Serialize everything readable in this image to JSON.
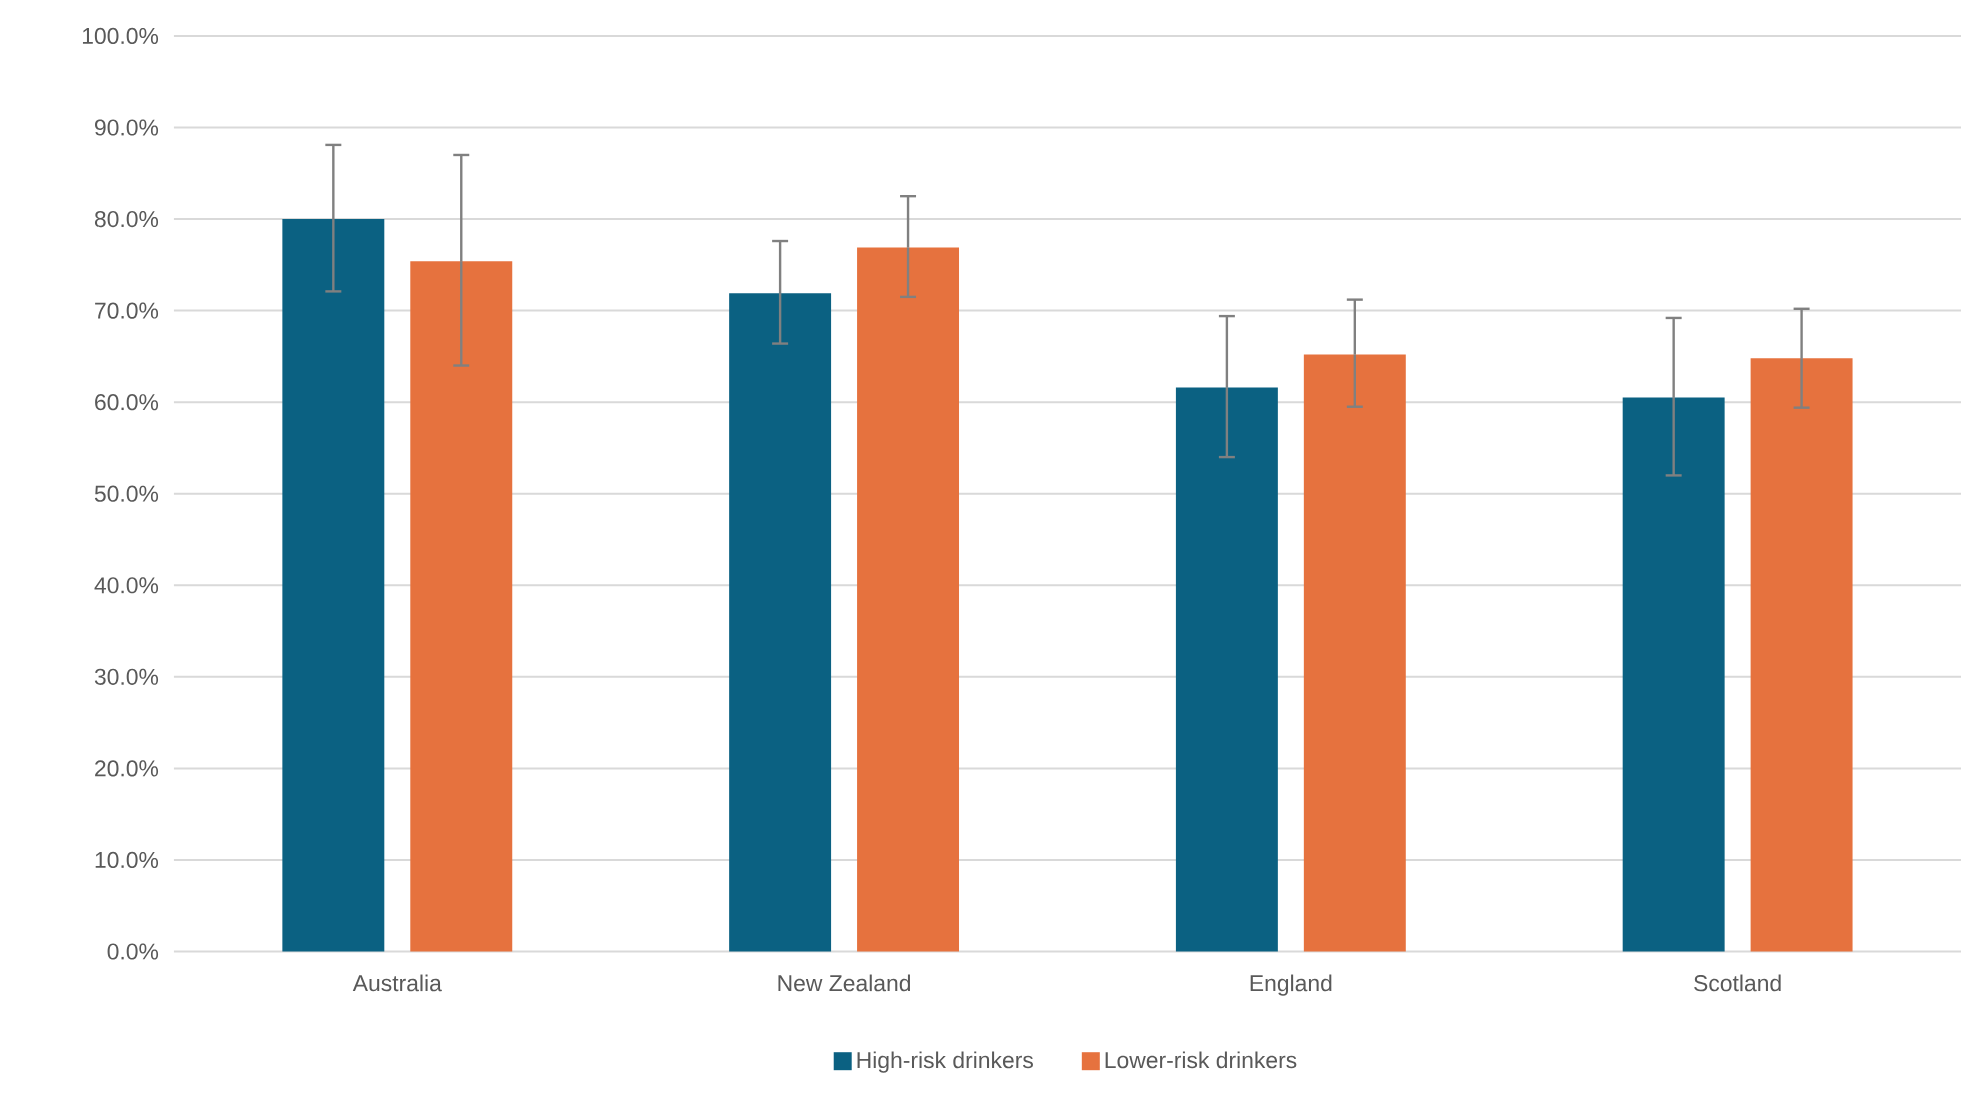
{
  "chart_data": {
    "type": "bar",
    "categories": [
      "Australia",
      "New Zealand",
      "England",
      "Scotland"
    ],
    "series": [
      {
        "name": "High-risk drinkers",
        "color": "#0b6182",
        "values": [
          80.0,
          71.9,
          61.6,
          60.5
        ],
        "errors": [
          [
            72.1,
            88.1
          ],
          [
            66.4,
            77.6
          ],
          [
            54.0,
            69.4
          ],
          [
            52.0,
            69.2
          ]
        ]
      },
      {
        "name": "Lower-risk drinkers",
        "color": "#e6723e",
        "values": [
          75.4,
          76.9,
          65.2,
          64.8
        ],
        "errors": [
          [
            64.0,
            87.0
          ],
          [
            71.5,
            82.5
          ],
          [
            59.5,
            71.2
          ],
          [
            59.4,
            70.2
          ]
        ]
      }
    ],
    "ylim": [
      0,
      100
    ],
    "yticks": [
      {
        "value": 0,
        "label": "0.0%"
      },
      {
        "value": 10,
        "label": "10.0%"
      },
      {
        "value": 20,
        "label": "20.0%"
      },
      {
        "value": 30,
        "label": "30.0%"
      },
      {
        "value": 40,
        "label": "40.0%"
      },
      {
        "value": 50,
        "label": "50.0%"
      },
      {
        "value": 60,
        "label": "60.0%"
      },
      {
        "value": 70,
        "label": "70.0%"
      },
      {
        "value": 80,
        "label": "80.0%"
      },
      {
        "value": 90,
        "label": "90.0%"
      },
      {
        "value": 100,
        "label": "100.0%"
      }
    ],
    "grid": "y",
    "legend": "bottom"
  }
}
